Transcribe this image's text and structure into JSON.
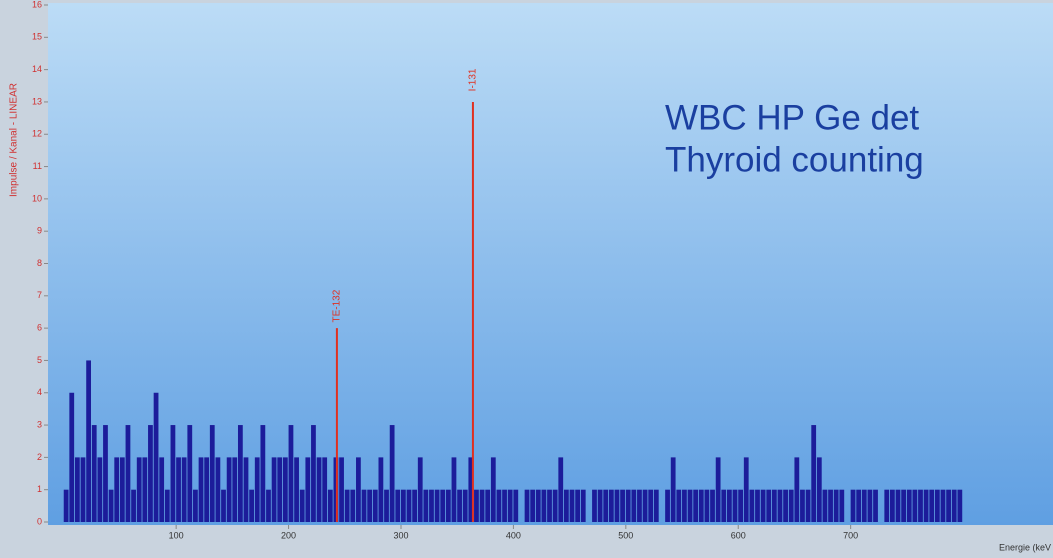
{
  "chart_data": {
    "type": "spectrum",
    "ylabel": "Impulse / Kanal - LINEAR",
    "xlabel": "Energie (keV",
    "annotations": [
      "WBC HP Ge det",
      "Thyroid counting"
    ],
    "color": "#1c1c9a",
    "peak_color": "#e03020",
    "xlim": [
      -14,
      880
    ],
    "ylim": [
      0,
      16
    ],
    "xticks": [
      100,
      200,
      300,
      400,
      500,
      600,
      700
    ],
    "yticks": [
      0,
      1,
      2,
      3,
      4,
      5,
      6,
      7,
      8,
      9,
      10,
      11,
      12,
      13,
      14,
      15,
      16
    ],
    "x": [
      0,
      5,
      10,
      15,
      20,
      25,
      30,
      35,
      40,
      45,
      50,
      55,
      60,
      65,
      70,
      75,
      80,
      85,
      90,
      95,
      100,
      105,
      110,
      115,
      120,
      125,
      130,
      135,
      140,
      145,
      150,
      155,
      160,
      165,
      170,
      175,
      180,
      185,
      190,
      195,
      200,
      205,
      210,
      215,
      220,
      225,
      230,
      235,
      240,
      245,
      250,
      255,
      260,
      265,
      270,
      275,
      280,
      285,
      290,
      295,
      300,
      305,
      310,
      315,
      320,
      325,
      330,
      335,
      340,
      345,
      350,
      355,
      360,
      365,
      370,
      375,
      380,
      385,
      390,
      395,
      400,
      405,
      410,
      415,
      420,
      425,
      430,
      435,
      440,
      445,
      450,
      455,
      460,
      465,
      470,
      475,
      480,
      485,
      490,
      495,
      500,
      505,
      510,
      515,
      520,
      525,
      530,
      535,
      540,
      545,
      550,
      555,
      560,
      565,
      570,
      575,
      580,
      585,
      590,
      595,
      600,
      605,
      610,
      615,
      620,
      625,
      630,
      635,
      640,
      645,
      650,
      655,
      660,
      665,
      670,
      675,
      680,
      685,
      690,
      695,
      700,
      705,
      710,
      715,
      720,
      725,
      730,
      735,
      740,
      745,
      750,
      755,
      760,
      765,
      770,
      775,
      780,
      785,
      790,
      795
    ],
    "values": [
      1,
      4,
      2,
      2,
      5,
      3,
      2,
      3,
      1,
      2,
      2,
      3,
      1,
      2,
      2,
      3,
      4,
      2,
      1,
      3,
      2,
      2,
      3,
      1,
      2,
      2,
      3,
      2,
      1,
      2,
      2,
      3,
      2,
      1,
      2,
      3,
      1,
      2,
      2,
      2,
      3,
      2,
      1,
      2,
      3,
      2,
      2,
      1,
      2,
      2,
      1,
      1,
      2,
      1,
      1,
      1,
      2,
      1,
      3,
      1,
      1,
      1,
      1,
      2,
      1,
      1,
      1,
      1,
      1,
      2,
      1,
      1,
      2,
      1,
      1,
      1,
      2,
      1,
      1,
      1,
      1,
      0,
      1,
      1,
      1,
      1,
      1,
      1,
      2,
      1,
      1,
      1,
      1,
      0,
      1,
      1,
      1,
      1,
      1,
      1,
      1,
      1,
      1,
      1,
      1,
      1,
      0,
      1,
      2,
      1,
      1,
      1,
      1,
      1,
      1,
      1,
      2,
      1,
      1,
      1,
      1,
      2,
      1,
      1,
      1,
      1,
      1,
      1,
      1,
      1,
      2,
      1,
      1,
      3,
      2,
      1,
      1,
      1,
      1,
      0,
      1,
      1,
      1,
      1,
      1,
      0,
      1,
      1,
      1,
      1,
      1,
      1,
      1,
      1,
      1,
      1,
      1,
      1,
      1,
      1
    ],
    "peaks": [
      {
        "label": "TE-132",
        "x": 243,
        "value": 6
      },
      {
        "label": "I-131",
        "x": 364,
        "value": 13
      }
    ]
  }
}
